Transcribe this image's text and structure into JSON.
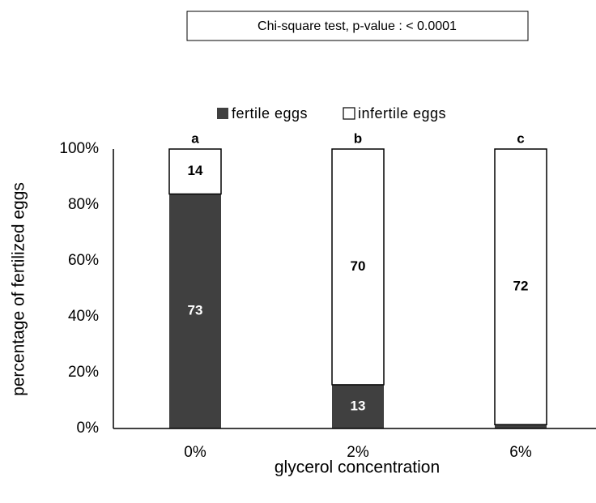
{
  "chart_data": {
    "type": "bar",
    "stack": "percent",
    "title": "Chi-square test, p-value : < 0.0001",
    "categories": [
      "0%",
      "2%",
      "6%"
    ],
    "series": [
      {
        "name": "fertile eggs",
        "color": "#404040",
        "values": [
          73,
          13,
          1
        ]
      },
      {
        "name": "infertile eggs",
        "color": "#ffffff",
        "values": [
          14,
          70,
          72
        ]
      }
    ],
    "annotations": [
      "a",
      "b",
      "c"
    ],
    "xlabel": "glycerol concentration",
    "ylabel": "percentage of fertilized eggs",
    "ylim": [
      0,
      100
    ],
    "yticks": [
      {
        "value": 0,
        "label": "0%"
      },
      {
        "value": 20,
        "label": "20%"
      },
      {
        "value": 40,
        "label": "40%"
      },
      {
        "value": 60,
        "label": "60%"
      },
      {
        "value": 80,
        "label": "80%"
      },
      {
        "value": 100,
        "label": "100%"
      }
    ],
    "legend": "top",
    "grid": false
  }
}
